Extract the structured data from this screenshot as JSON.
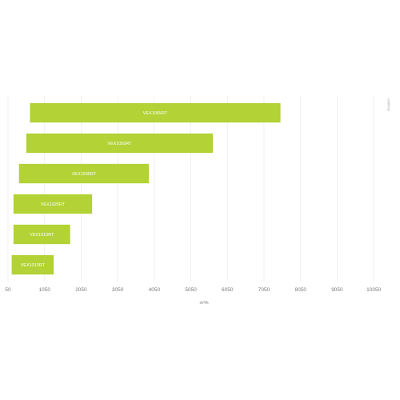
{
  "chart_data": {
    "type": "bar",
    "orientation": "horizontal",
    "style": "floating-range",
    "xlabel": "m³/h",
    "xlim": [
      50,
      10550
    ],
    "xticks": [
      50,
      1050,
      2050,
      3050,
      4050,
      5050,
      6050,
      7050,
      8050,
      9050,
      10050
    ],
    "grid": true,
    "bar_color": "#b2d235",
    "categories": [
      "VEX1065RT",
      "VEX1050RT",
      "VEX1035RT",
      "VEX1020RT",
      "VEX1015RT",
      "VEX1010RT"
    ],
    "ranges": [
      [
        650,
        7500
      ],
      [
        550,
        5650
      ],
      [
        350,
        3900
      ],
      [
        200,
        2350
      ],
      [
        200,
        1750
      ],
      [
        150,
        1300
      ]
    ],
    "side_code": "ID44810"
  }
}
